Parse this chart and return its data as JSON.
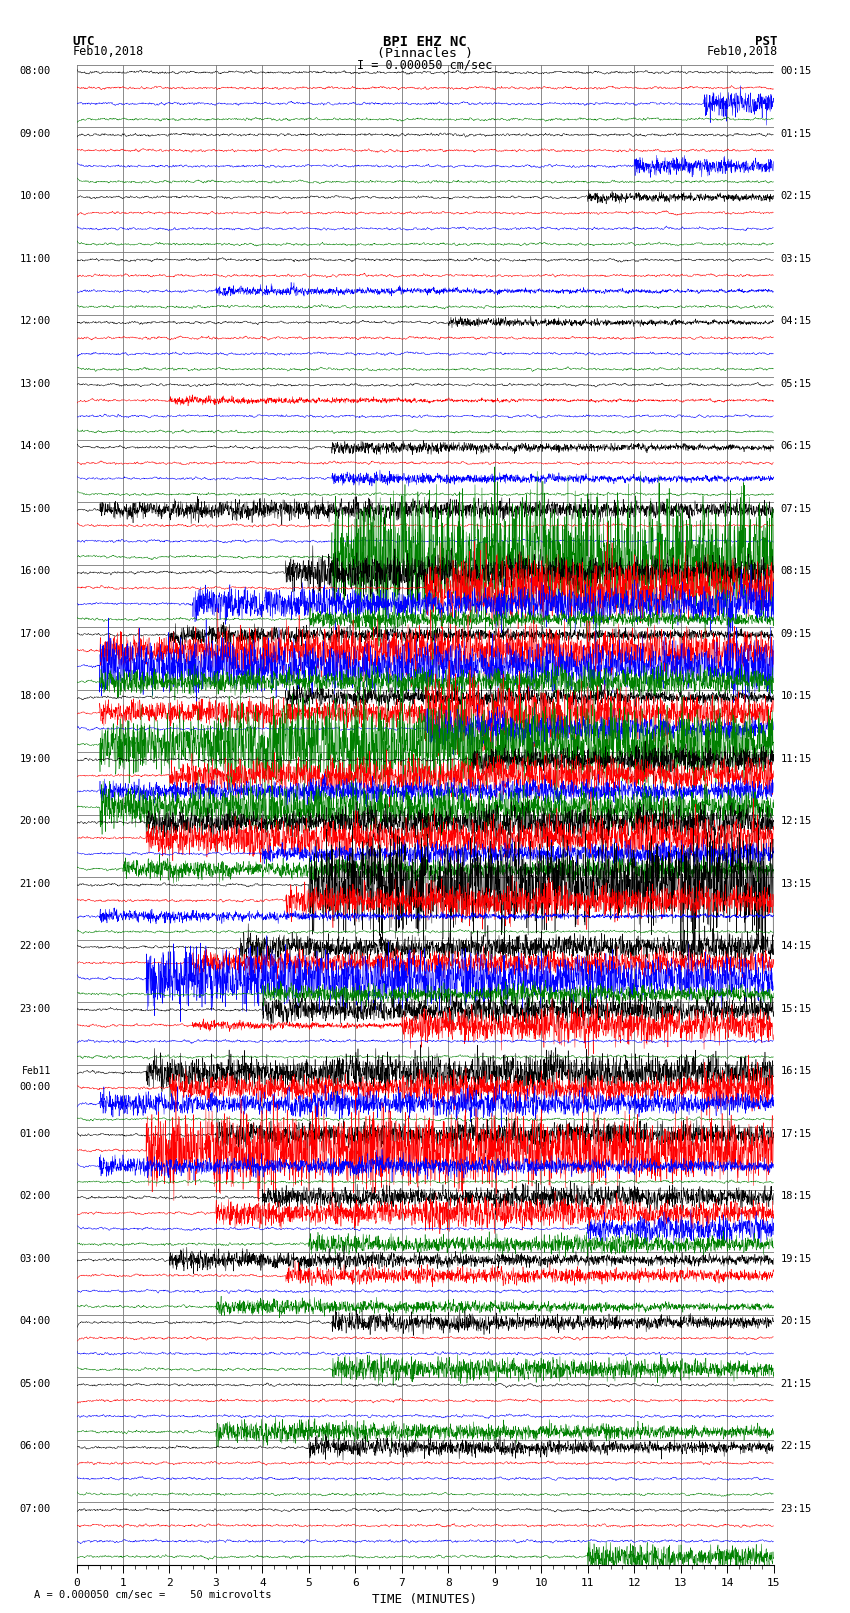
{
  "title_line1": "BPI EHZ NC",
  "title_line2": "(Pinnacles )",
  "scale_label": "I = 0.000050 cm/sec",
  "left_header1": "UTC",
  "left_header2": "Feb10,2018",
  "right_header1": "PST",
  "right_header2": "Feb10,2018",
  "bottom_label": "TIME (MINUTES)",
  "bottom_note": "= 0.000050 cm/sec =    50 microvolts",
  "utc_times": [
    "08:00",
    "09:00",
    "10:00",
    "11:00",
    "12:00",
    "13:00",
    "14:00",
    "15:00",
    "16:00",
    "17:00",
    "18:00",
    "19:00",
    "20:00",
    "21:00",
    "22:00",
    "23:00",
    "Feb11\n00:00",
    "01:00",
    "02:00",
    "03:00",
    "04:00",
    "05:00",
    "06:00",
    "07:00"
  ],
  "pst_times": [
    "00:15",
    "01:15",
    "02:15",
    "03:15",
    "04:15",
    "05:15",
    "06:15",
    "07:15",
    "08:15",
    "09:15",
    "10:15",
    "11:15",
    "12:15",
    "13:15",
    "14:15",
    "15:15",
    "16:15",
    "17:15",
    "18:15",
    "19:15",
    "20:15",
    "21:15",
    "22:15",
    "23:15"
  ],
  "n_rows": 24,
  "n_traces_per_row": 4,
  "trace_colors": [
    "black",
    "red",
    "blue",
    "green"
  ],
  "bg_color": "#ffffff",
  "grid_color": "#777777",
  "x_min": 0,
  "x_max": 15,
  "x_major_ticks": [
    0,
    1,
    2,
    3,
    4,
    5,
    6,
    7,
    8,
    9,
    10,
    11,
    12,
    13,
    14,
    15
  ],
  "fig_width": 8.5,
  "fig_height": 16.13,
  "base_noise_amp": 0.04,
  "n_samples": 2700
}
